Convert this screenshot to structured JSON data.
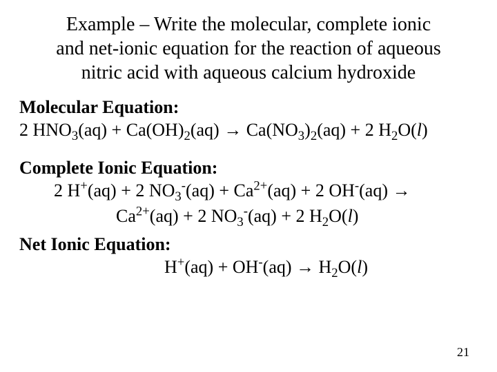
{
  "title": {
    "line1": "Example – Write the molecular, complete ionic",
    "line2": "and net-ionic equation for the reaction of aqueous",
    "line3": "nitric acid with aqueous calcium hydroxide"
  },
  "molecular": {
    "label": "Molecular Equation:",
    "coef1": "2 HNO",
    "sub1": "3",
    "aq1": "(aq) + Ca(OH)",
    "sub2": "2",
    "aq2": "(aq) ",
    "arrow": "→",
    "prod1": " Ca(NO",
    "sub3": "3",
    "paren1": ")",
    "sub4": "2",
    "aq3": "(aq) + 2 H",
    "sub5": "2",
    "o": "O(",
    "l": "l",
    "close": ")"
  },
  "complete": {
    "label": "Complete Ionic Equation:",
    "r1a": "2 H",
    "sup1": "+",
    "r1b": "(aq) + 2 NO",
    "sub1": "3",
    "sup2": "-",
    "r1c": "(aq) + Ca",
    "sup3": "2+",
    "r1d": "(aq) + 2 OH",
    "sup4": "-",
    "r1e": "(aq) ",
    "arrow": "→",
    "r2a": "Ca",
    "sup5": "2+",
    "r2b": "(aq) + 2 NO",
    "sub2": "3",
    "sup6": "-",
    "r2c": "(aq)  + 2 H",
    "sub3": "2",
    "r2d": "O(",
    "l": "l",
    "r2e": ")"
  },
  "net": {
    "label": "Net Ionic Equation:",
    "a": "H",
    "sup1": "+",
    "b": "(aq) + OH",
    "sup2": "-",
    "c": "(aq) ",
    "arrow": "→",
    "d": " H",
    "sub1": "2",
    "e": "O(",
    "l": "l",
    "f": ")"
  },
  "page": "21",
  "colors": {
    "text": "#000000",
    "bg": "#ffffff"
  },
  "fonts": {
    "family": "Times New Roman",
    "title_size": 28,
    "body_size": 26
  }
}
